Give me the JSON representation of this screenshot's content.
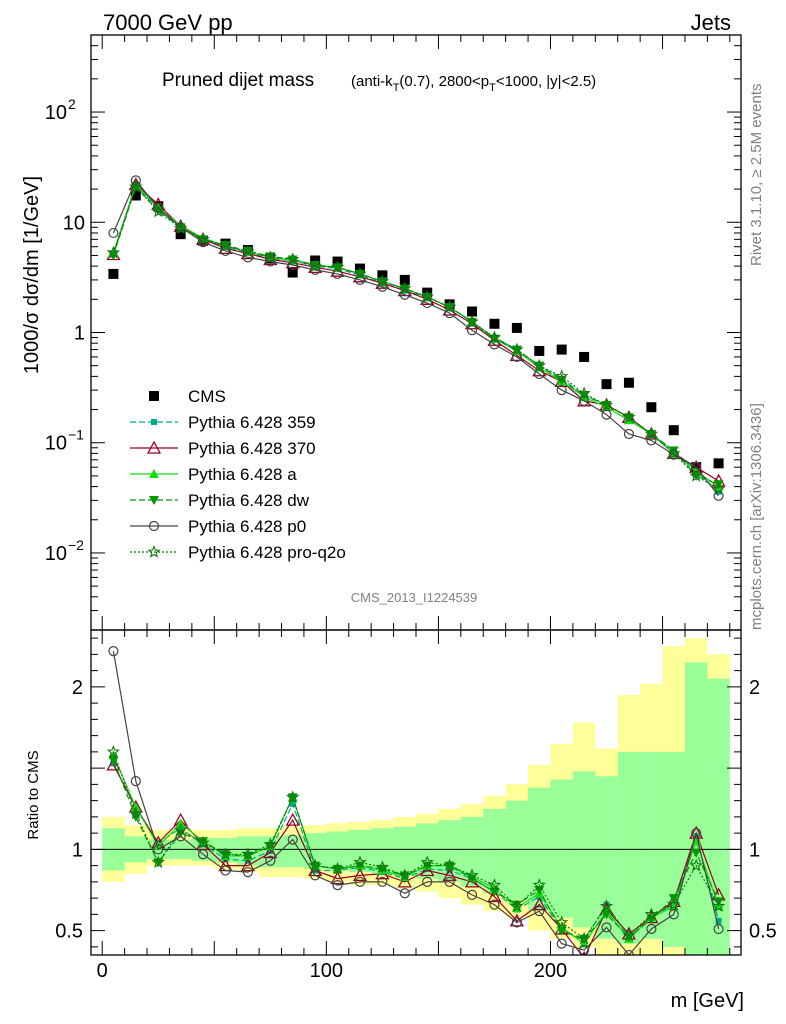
{
  "header": {
    "left": "7000 GeV pp",
    "right": "Jets"
  },
  "side_text": {
    "top": "Rivet 3.1.10, ≥ 2.5M events",
    "bottom": "mcplots.cern.ch [arXiv:1306.3436]"
  },
  "watermark": "CMS_2013_I1224539",
  "colors": {
    "cms": "#000000",
    "p359": "#00aa88",
    "p370": "#990022",
    "pa": "#11dd11",
    "pdw": "#009900",
    "pp0": "#444444",
    "pq2o": "#117711",
    "band_yellow": "#ffff99",
    "band_green": "#99ff99"
  },
  "chart_data": [
    {
      "type": "line",
      "title_main": "Pruned dijet mass",
      "title_sub": "(anti-k_T(0.7), 2800<p_T<1000, |y|<2.5)",
      "ylabel": "1000/σ dσ/dm [1/GeV]",
      "yscale": "log",
      "ylim": [
        0.002,
        500
      ],
      "xlim": [
        -5,
        285
      ],
      "y_tick_labels": [
        {
          "v": 100,
          "text": "10",
          "sup": "2"
        },
        {
          "v": 10,
          "text": "10",
          "sup": ""
        },
        {
          "v": 1,
          "text": "1",
          "sup": ""
        },
        {
          "v": 0.1,
          "text": "10",
          "sup": "−1"
        },
        {
          "v": 0.01,
          "text": "10",
          "sup": "−2"
        }
      ],
      "x": [
        5,
        15,
        25,
        35,
        45,
        55,
        65,
        75,
        85,
        95,
        105,
        115,
        125,
        135,
        145,
        155,
        165,
        175,
        185,
        195,
        205,
        215,
        225,
        235,
        245,
        255,
        265,
        275
      ],
      "series": [
        {
          "name": "CMS",
          "key": "cms",
          "marker": "square",
          "values": [
            3.4,
            17.5,
            14,
            7.8,
            6.8,
            6.4,
            5.6,
            4.7,
            3.5,
            4.5,
            4.4,
            3.8,
            3.3,
            3.0,
            2.3,
            1.8,
            1.55,
            1.2,
            1.1,
            0.68,
            0.7,
            0.6,
            0.34,
            0.35,
            0.21,
            0.13,
            0.06,
            0.065
          ]
        },
        {
          "name": "Pythia 6.428 359",
          "key": "p359",
          "marker": "square-small",
          "dash": "6,3",
          "values": [
            5.2,
            22,
            13,
            9.1,
            7.1,
            6.0,
            5.3,
            4.7,
            4.5,
            4.0,
            3.8,
            3.3,
            2.8,
            2.4,
            2.1,
            1.7,
            1.25,
            0.9,
            0.7,
            0.5,
            0.38,
            0.27,
            0.22,
            0.17,
            0.12,
            0.085,
            0.055,
            0.036
          ]
        },
        {
          "name": "Pythia 6.428 370",
          "key": "p370",
          "marker": "triangle-open",
          "dash": "",
          "values": [
            5.1,
            22,
            14.5,
            9.2,
            7.0,
            5.8,
            5.2,
            4.6,
            4.3,
            3.9,
            3.6,
            3.2,
            2.8,
            2.4,
            2.0,
            1.6,
            1.2,
            0.85,
            0.62,
            0.45,
            0.36,
            0.24,
            0.22,
            0.17,
            0.12,
            0.08,
            0.06,
            0.045
          ]
        },
        {
          "name": "Pythia 6.428 a",
          "key": "pa",
          "marker": "triangle",
          "dash": "",
          "values": [
            5.3,
            22,
            13.5,
            9.3,
            7.2,
            6.1,
            5.4,
            4.8,
            4.5,
            4.1,
            3.9,
            3.4,
            2.9,
            2.5,
            2.1,
            1.7,
            1.25,
            0.88,
            0.68,
            0.48,
            0.36,
            0.26,
            0.21,
            0.16,
            0.12,
            0.08,
            0.055,
            0.04
          ]
        },
        {
          "name": "Pythia 6.428 dw",
          "key": "pdw",
          "marker": "triangle-down",
          "dash": "6,3",
          "values": [
            5.0,
            21,
            12.8,
            9.0,
            7.0,
            6.2,
            5.5,
            4.9,
            4.6,
            4.1,
            3.9,
            3.4,
            2.9,
            2.5,
            2.1,
            1.7,
            1.25,
            0.88,
            0.7,
            0.5,
            0.37,
            0.27,
            0.22,
            0.17,
            0.12,
            0.085,
            0.05,
            0.042
          ]
        },
        {
          "name": "Pythia 6.428 p0",
          "key": "pp0",
          "marker": "circle-open",
          "dash": "",
          "values": [
            8,
            24,
            13.5,
            9.0,
            6.6,
            5.5,
            4.8,
            4.4,
            4.1,
            3.7,
            3.4,
            3.0,
            2.6,
            2.2,
            1.85,
            1.5,
            1.05,
            0.78,
            0.6,
            0.42,
            0.3,
            0.24,
            0.18,
            0.12,
            0.105,
            0.078,
            0.06,
            0.033
          ]
        },
        {
          "name": "Pythia 6.428 pro-q2o",
          "key": "pq2o",
          "marker": "star",
          "dash": "2,2",
          "values": [
            5.3,
            21,
            12.5,
            8.8,
            7.0,
            6.1,
            5.4,
            4.8,
            4.6,
            4.0,
            3.9,
            3.4,
            2.9,
            2.5,
            2.1,
            1.7,
            1.25,
            0.9,
            0.7,
            0.5,
            0.4,
            0.28,
            0.22,
            0.17,
            0.12,
            0.08,
            0.05,
            0.038
          ]
        }
      ]
    },
    {
      "type": "line",
      "ylabel": "Ratio to CMS",
      "xlabel": "m [GeV]",
      "ylim": [
        0.35,
        2.35
      ],
      "xlim": [
        -5,
        285
      ],
      "y_tick_labels": [
        {
          "v": 0.5,
          "text": "0.5"
        },
        {
          "v": 1,
          "text": "1"
        },
        {
          "v": 2,
          "text": "2"
        }
      ],
      "x_tick_labels": [
        {
          "v": 0,
          "text": "0"
        },
        {
          "v": 100,
          "text": "100"
        },
        {
          "v": 200,
          "text": "200"
        }
      ],
      "x": [
        5,
        15,
        25,
        35,
        45,
        55,
        65,
        75,
        85,
        95,
        105,
        115,
        125,
        135,
        145,
        155,
        165,
        175,
        185,
        195,
        205,
        215,
        225,
        235,
        245,
        255,
        265,
        275
      ],
      "band_yellow": {
        "lo": [
          0.8,
          0.85,
          0.9,
          0.9,
          0.9,
          0.88,
          0.86,
          0.83,
          0.83,
          0.82,
          0.8,
          0.78,
          0.78,
          0.76,
          0.74,
          0.7,
          0.66,
          0.62,
          0.58,
          0.5,
          0.45,
          0.4,
          0.35,
          0.35,
          0.35,
          0.35,
          0.35,
          0.35
        ],
        "hi": [
          1.2,
          1.15,
          1.12,
          1.12,
          1.12,
          1.12,
          1.13,
          1.13,
          1.14,
          1.15,
          1.16,
          1.17,
          1.18,
          1.2,
          1.22,
          1.25,
          1.28,
          1.33,
          1.4,
          1.52,
          1.65,
          1.78,
          1.62,
          1.95,
          2.02,
          2.25,
          2.3,
          2.2
        ]
      },
      "band_green": {
        "lo": [
          0.87,
          0.92,
          0.94,
          0.94,
          0.93,
          0.92,
          0.9,
          0.89,
          0.89,
          0.88,
          0.87,
          0.86,
          0.85,
          0.84,
          0.82,
          0.8,
          0.77,
          0.73,
          0.69,
          0.62,
          0.58,
          0.52,
          0.45,
          0.42,
          0.45,
          0.4,
          0.35,
          0.35
        ],
        "hi": [
          1.13,
          1.08,
          1.06,
          1.06,
          1.07,
          1.07,
          1.08,
          1.08,
          1.09,
          1.1,
          1.11,
          1.12,
          1.13,
          1.14,
          1.16,
          1.18,
          1.2,
          1.25,
          1.3,
          1.38,
          1.43,
          1.48,
          1.45,
          1.6,
          1.6,
          1.6,
          2.15,
          2.05
        ]
      },
      "series": [
        {
          "key": "p359",
          "marker": "square-small",
          "dash": "6,3",
          "values": [
            1.53,
            1.25,
            1.04,
            1.13,
            1.03,
            0.94,
            0.93,
            0.99,
            1.28,
            0.87,
            0.87,
            0.89,
            0.86,
            0.82,
            0.88,
            0.87,
            0.82,
            0.74,
            0.63,
            0.71,
            0.5,
            0.44,
            0.66,
            0.46,
            0.58,
            0.66,
            1.08,
            0.56
          ]
        },
        {
          "key": "p370",
          "marker": "triangle-open",
          "dash": "",
          "values": [
            1.52,
            1.26,
            1.04,
            1.18,
            1.03,
            0.9,
            0.9,
            0.98,
            1.18,
            0.87,
            0.82,
            0.84,
            0.85,
            0.8,
            0.87,
            0.84,
            0.8,
            0.71,
            0.56,
            0.66,
            0.51,
            0.33,
            0.63,
            0.48,
            0.58,
            0.68,
            1.1,
            0.72
          ]
        },
        {
          "key": "pa",
          "marker": "triangle",
          "dash": "",
          "values": [
            1.58,
            1.26,
            1.02,
            1.16,
            1.05,
            0.96,
            0.96,
            1.02,
            1.32,
            0.9,
            0.88,
            0.9,
            0.87,
            0.83,
            0.9,
            0.9,
            0.83,
            0.76,
            0.64,
            0.73,
            0.52,
            0.42,
            0.62,
            0.45,
            0.58,
            0.65,
            1.05,
            0.65
          ]
        },
        {
          "key": "pdw",
          "marker": "triangle-down",
          "dash": "6,3",
          "values": [
            1.55,
            1.2,
            0.92,
            1.1,
            1.05,
            0.97,
            0.96,
            1.02,
            1.32,
            0.9,
            0.88,
            0.9,
            0.88,
            0.84,
            0.9,
            0.9,
            0.82,
            0.74,
            0.66,
            0.75,
            0.5,
            0.45,
            0.6,
            0.46,
            0.57,
            0.7,
            0.98,
            0.68
          ]
        },
        {
          "key": "pp0",
          "marker": "circle-open",
          "dash": "",
          "values": [
            2.22,
            1.42,
            1.0,
            1.08,
            0.97,
            0.87,
            0.86,
            0.93,
            1.06,
            0.84,
            0.78,
            0.8,
            0.8,
            0.73,
            0.8,
            0.8,
            0.72,
            0.66,
            0.55,
            0.62,
            0.42,
            0.38,
            0.52,
            0.35,
            0.51,
            0.6,
            1.1,
            0.51
          ]
        },
        {
          "key": "pq2o",
          "marker": "star",
          "dash": "2,2",
          "values": [
            1.6,
            1.22,
            0.92,
            1.12,
            1.04,
            0.97,
            0.97,
            1.03,
            1.32,
            0.9,
            0.88,
            0.92,
            0.89,
            0.84,
            0.92,
            0.9,
            0.84,
            0.78,
            0.65,
            0.78,
            0.55,
            0.45,
            0.65,
            0.47,
            0.6,
            0.66,
            0.9,
            0.65
          ]
        }
      ]
    }
  ]
}
